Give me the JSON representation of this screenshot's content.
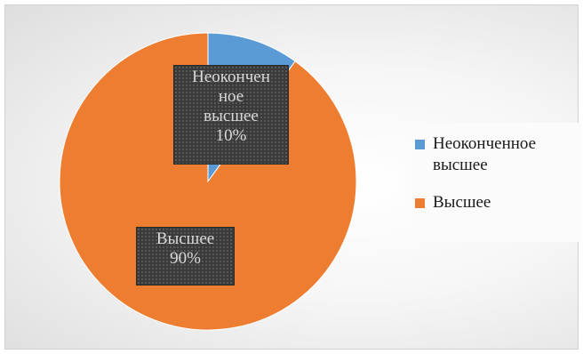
{
  "chart_data": {
    "type": "pie",
    "categories": [
      "Неоконченное высшее",
      "Высшее"
    ],
    "values": [
      10,
      90
    ],
    "unit": "%",
    "colors": [
      "#5b9bd5",
      "#ed7d31"
    ],
    "data_labels": [
      {
        "category_lines": [
          "Неокончен",
          "ное",
          "высшее"
        ],
        "value_text": "10%"
      },
      {
        "category_lines": [
          "Высшее"
        ],
        "value_text": "90%"
      }
    ],
    "legend": {
      "placement": "right",
      "entries": [
        {
          "label_lines": [
            "Неоконченное",
            "высшее"
          ],
          "color": "#5b9bd5"
        },
        {
          "label_lines": [
            "Высшее"
          ],
          "color": "#ed7d31"
        }
      ]
    },
    "grid": false
  }
}
